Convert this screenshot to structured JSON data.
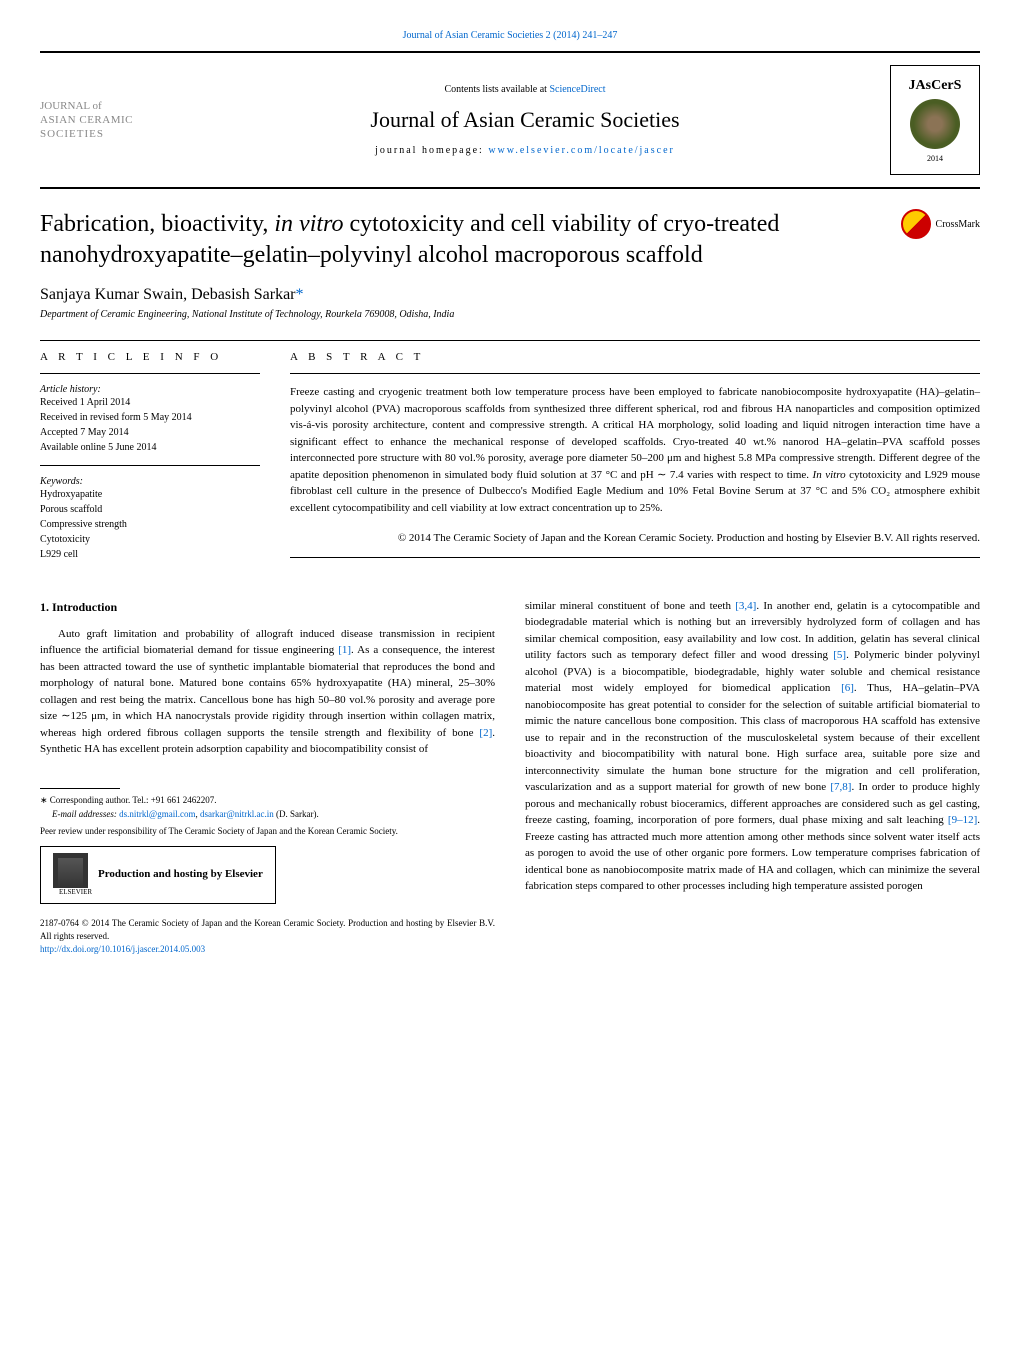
{
  "header": {
    "journal_ref": "Journal of Asian Ceramic Societies 2 (2014) 241–247",
    "contents_text": "Contents lists available at ",
    "contents_link": "ScienceDirect",
    "journal_name": "Journal of Asian Ceramic Societies",
    "homepage_label": "journal homepage: ",
    "homepage_url": "www.elsevier.com/locate/jascer",
    "logo_left_line1": "JOURNAL of",
    "logo_left_line2": "ASIAN CERAMIC",
    "logo_left_line3": "SOCIETIES",
    "logo_right_text": "JAsCerS",
    "logo_right_year": "2014"
  },
  "article": {
    "title_part1": "Fabrication, bioactivity, ",
    "title_italic": "in vitro",
    "title_part2": " cytotoxicity and cell viability of cryo-treated nanohydroxyapatite–gelatin–polyvinyl alcohol macroporous scaffold",
    "crossmark_label": "CrossMark",
    "authors": "Sanjaya Kumar Swain, Debasish Sarkar",
    "author_marker": "*",
    "affiliation": "Department of Ceramic Engineering, National Institute of Technology, Rourkela 769008, Odisha, India"
  },
  "info": {
    "heading": "A R T I C L E   I N F O",
    "history_label": "Article history:",
    "received": "Received 1 April 2014",
    "revised": "Received in revised form 5 May 2014",
    "accepted": "Accepted 7 May 2014",
    "online": "Available online 5 June 2014",
    "keywords_label": "Keywords:",
    "kw1": "Hydroxyapatite",
    "kw2": "Porous scaffold",
    "kw3": "Compressive strength",
    "kw4": "Cytotoxicity",
    "kw5": "L929 cell"
  },
  "abstract": {
    "heading": "A B S T R A C T",
    "text_part1": "Freeze casting and cryogenic treatment both low temperature process have been employed to fabricate nanobiocomposite hydroxyapatite (HA)–gelatin–polyvinyl alcohol (PVA) macroporous scaffolds from synthesized three different spherical, rod and fibrous HA nanoparticles and composition optimized vis-á-vis porosity architecture, content and compressive strength. A critical HA morphology, solid loading and liquid nitrogen interaction time have a significant effect to enhance the mechanical response of developed scaffolds. Cryo-treated 40 wt.% nanorod HA–gelatin–PVA scaffold posses interconnected pore structure with 80 vol.% porosity, average pore diameter 50–200 μm and highest 5.8 MPa compressive strength. Different degree of the apatite deposition phenomenon in simulated body fluid solution at 37 °C and pH ∼ 7.4 varies with respect to time. ",
    "text_italic": "In vitro",
    "text_part2": " cytotoxicity and L929 mouse fibroblast cell culture in the presence of Dulbecco's Modified Eagle Medium and 10% Fetal Bovine Serum at 37 °C and 5% CO₂ atmosphere exhibit excellent cytocompatibility and cell viability at low extract concentration up to 25%.",
    "copyright": "© 2014 The Ceramic Society of Japan and the Korean Ceramic Society. Production and hosting by Elsevier B.V. All rights reserved."
  },
  "intro": {
    "heading": "1.  Introduction",
    "col1_p1a": "Auto graft limitation and probability of allograft induced disease transmission in recipient influence the artificial biomaterial demand for tissue engineering ",
    "ref1": "[1]",
    "col1_p1b": ". As a consequence, the interest has been attracted toward the use of synthetic implantable biomaterial that reproduces the bond and morphology of natural bone. Matured bone contains 65% hydroxyapatite (HA) mineral, 25–30% collagen and rest being the matrix. Cancellous bone has high 50–80 vol.% porosity and average pore size ∼125 μm, in which HA nanocrystals provide rigidity through insertion within collagen matrix, whereas high ordered fibrous collagen supports the tensile strength and flexibility of bone ",
    "ref2": "[2]",
    "col1_p1c": ". Synthetic HA has excellent protein adsorption capability and biocompatibility consist of",
    "col2_p1a": "similar mineral constituent of bone and teeth ",
    "ref34": "[3,4]",
    "col2_p1b": ". In another end, gelatin is a cytocompatible and biodegradable material which is nothing but an irreversibly hydrolyzed form of collagen and has similar chemical composition, easy availability and low cost. In addition, gelatin has several clinical utility factors such as temporary defect filler and wood dressing ",
    "ref5": "[5]",
    "col2_p1c": ". Polymeric binder polyvinyl alcohol (PVA) is a biocompatible, biodegradable, highly water soluble and chemical resistance material most widely employed for biomedical application ",
    "ref6": "[6]",
    "col2_p1d": ". Thus, HA–gelatin–PVA nanobiocomposite has great potential to consider for the selection of suitable artificial biomaterial to mimic the nature cancellous bone composition. This class of macroporous HA scaffold has extensive use to repair and in the reconstruction of the musculoskeletal system because of their excellent bioactivity and biocompatibility with natural bone. High surface area, suitable pore size and interconnectivity simulate the human bone structure for the migration and cell proliferation, vascularization and as a support material for growth of new bone ",
    "ref78": "[7,8]",
    "col2_p1e": ". In order to produce highly porous and mechanically robust bioceramics, different approaches are considered such as gel casting, freeze casting, foaming, incorporation of pore formers, dual phase mixing and salt leaching ",
    "ref912": "[9–12]",
    "col2_p1f": ". Freeze casting has attracted much more attention among other methods since solvent water itself acts as porogen to avoid the use of other organic pore formers. Low temperature comprises fabrication of identical bone as nanobiocomposite matrix made of HA and collagen, which can minimize the several fabrication steps compared to other processes including high temperature assisted porogen"
  },
  "footer": {
    "corresponding": "∗ Corresponding author. Tel.: +91 661 2462207.",
    "email_label": "E-mail addresses: ",
    "email1": "ds.nitrkl@gmail.com",
    "email_sep": ", ",
    "email2": "dsarkar@nitrkl.ac.in",
    "email_suffix": " (D. Sarkar).",
    "peer_review": "Peer review under responsibility of The Ceramic Society of Japan and the Korean Ceramic Society.",
    "elsevier_label": "ELSEVIER",
    "hosting_text": "Production and hosting by Elsevier",
    "issn": "2187-0764 © 2014 The Ceramic Society of Japan and the Korean Ceramic Society. Production and hosting by Elsevier B.V. All rights reserved.",
    "doi": "http://dx.doi.org/10.1016/j.jascer.2014.05.003"
  },
  "colors": {
    "link": "#0066cc",
    "text": "#000000",
    "background": "#ffffff",
    "border": "#000000",
    "crossmark_red": "#cc0000",
    "crossmark_yellow": "#ffcc00"
  }
}
